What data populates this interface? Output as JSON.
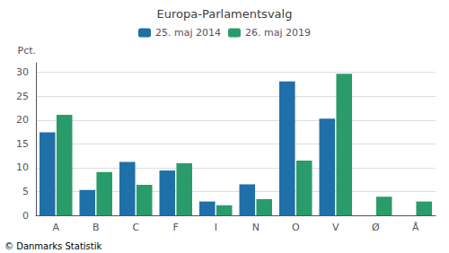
{
  "chart_data": {
    "type": "bar",
    "title": "Europa-Parlamentsvalg",
    "categories": [
      "A",
      "B",
      "C",
      "F",
      "I",
      "N",
      "O",
      "V",
      "Ø",
      "Å"
    ],
    "series": [
      {
        "name": "25. maj 2014",
        "color": "#1f6fa8",
        "values": [
          17.4,
          5.3,
          11.2,
          9.4,
          2.9,
          6.5,
          28.1,
          20.3,
          0.0,
          0.0
        ]
      },
      {
        "name": "26. maj 2019",
        "color": "#2a9b6a",
        "values": [
          21.1,
          9.1,
          6.4,
          10.9,
          2.1,
          3.4,
          11.5,
          29.7,
          3.9,
          2.9
        ]
      }
    ],
    "ylabel": "Pct.",
    "ylim": [
      0,
      32
    ],
    "yticks": [
      0,
      5,
      10,
      15,
      20,
      25,
      30
    ],
    "grid": true,
    "legend": "top",
    "annotations": [
      "© Danmarks Statistik"
    ]
  }
}
